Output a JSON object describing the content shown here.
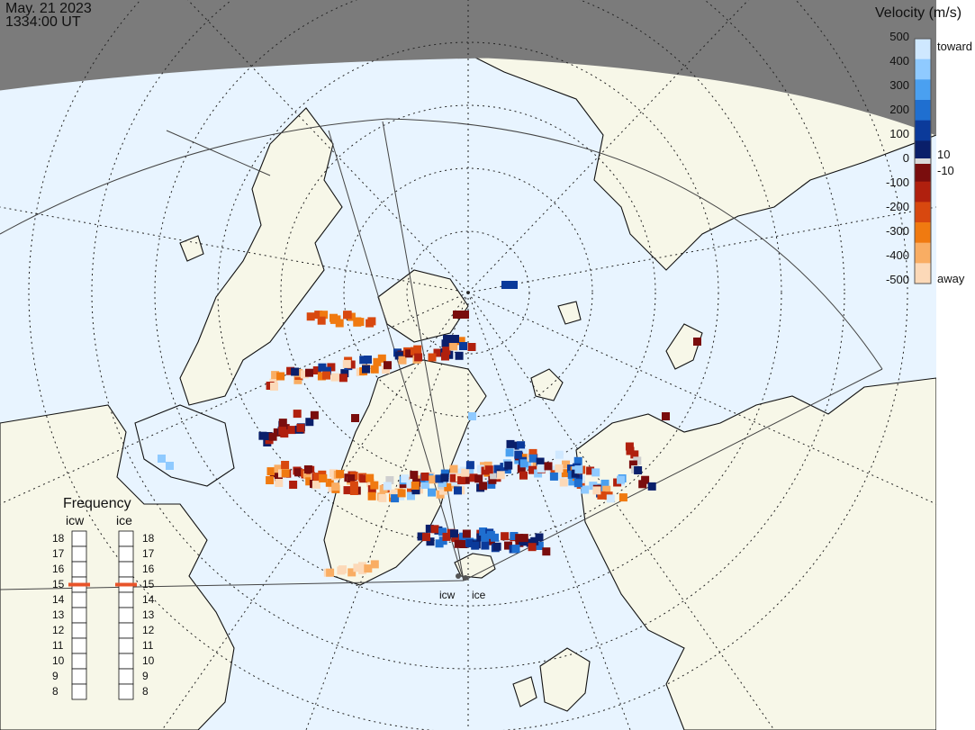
{
  "header": {
    "date": "May. 21 2023",
    "time": "1334:00 UT"
  },
  "velocity_scale": {
    "title": "Velocity (m/s)",
    "ticks": [
      "500",
      "400",
      "300",
      "200",
      "100",
      "0",
      "-100",
      "-200",
      "-300",
      "-400",
      "-500"
    ],
    "right_labels": {
      "top": "toward",
      "pos_small": "10",
      "neg_small": "-10",
      "bottom": "away"
    },
    "colors": [
      "#cfe8ff",
      "#8fcaff",
      "#4aa0f0",
      "#1f6fd0",
      "#0b3a9a",
      "#0a1f6a",
      "#7a0d0d",
      "#b0200e",
      "#d8480f",
      "#f07a10",
      "#f9ad63",
      "#fcd9b8"
    ]
  },
  "frequency_panel": {
    "title": "Frequency",
    "stations": [
      "icw",
      "ice"
    ],
    "ticks": [
      "18",
      "17",
      "16",
      "15",
      "14",
      "13",
      "12",
      "11",
      "10",
      "9",
      "8"
    ],
    "selected": {
      "icw": 15,
      "ice": 15
    },
    "marker_color": "#e8542a"
  },
  "stations": [
    {
      "code": "icw"
    },
    {
      "code": "ice"
    }
  ],
  "map": {
    "land": "#f7f7e8",
    "ocean": "#e8f4ff",
    "night": "#7b7b7b",
    "coast": "#111111"
  }
}
